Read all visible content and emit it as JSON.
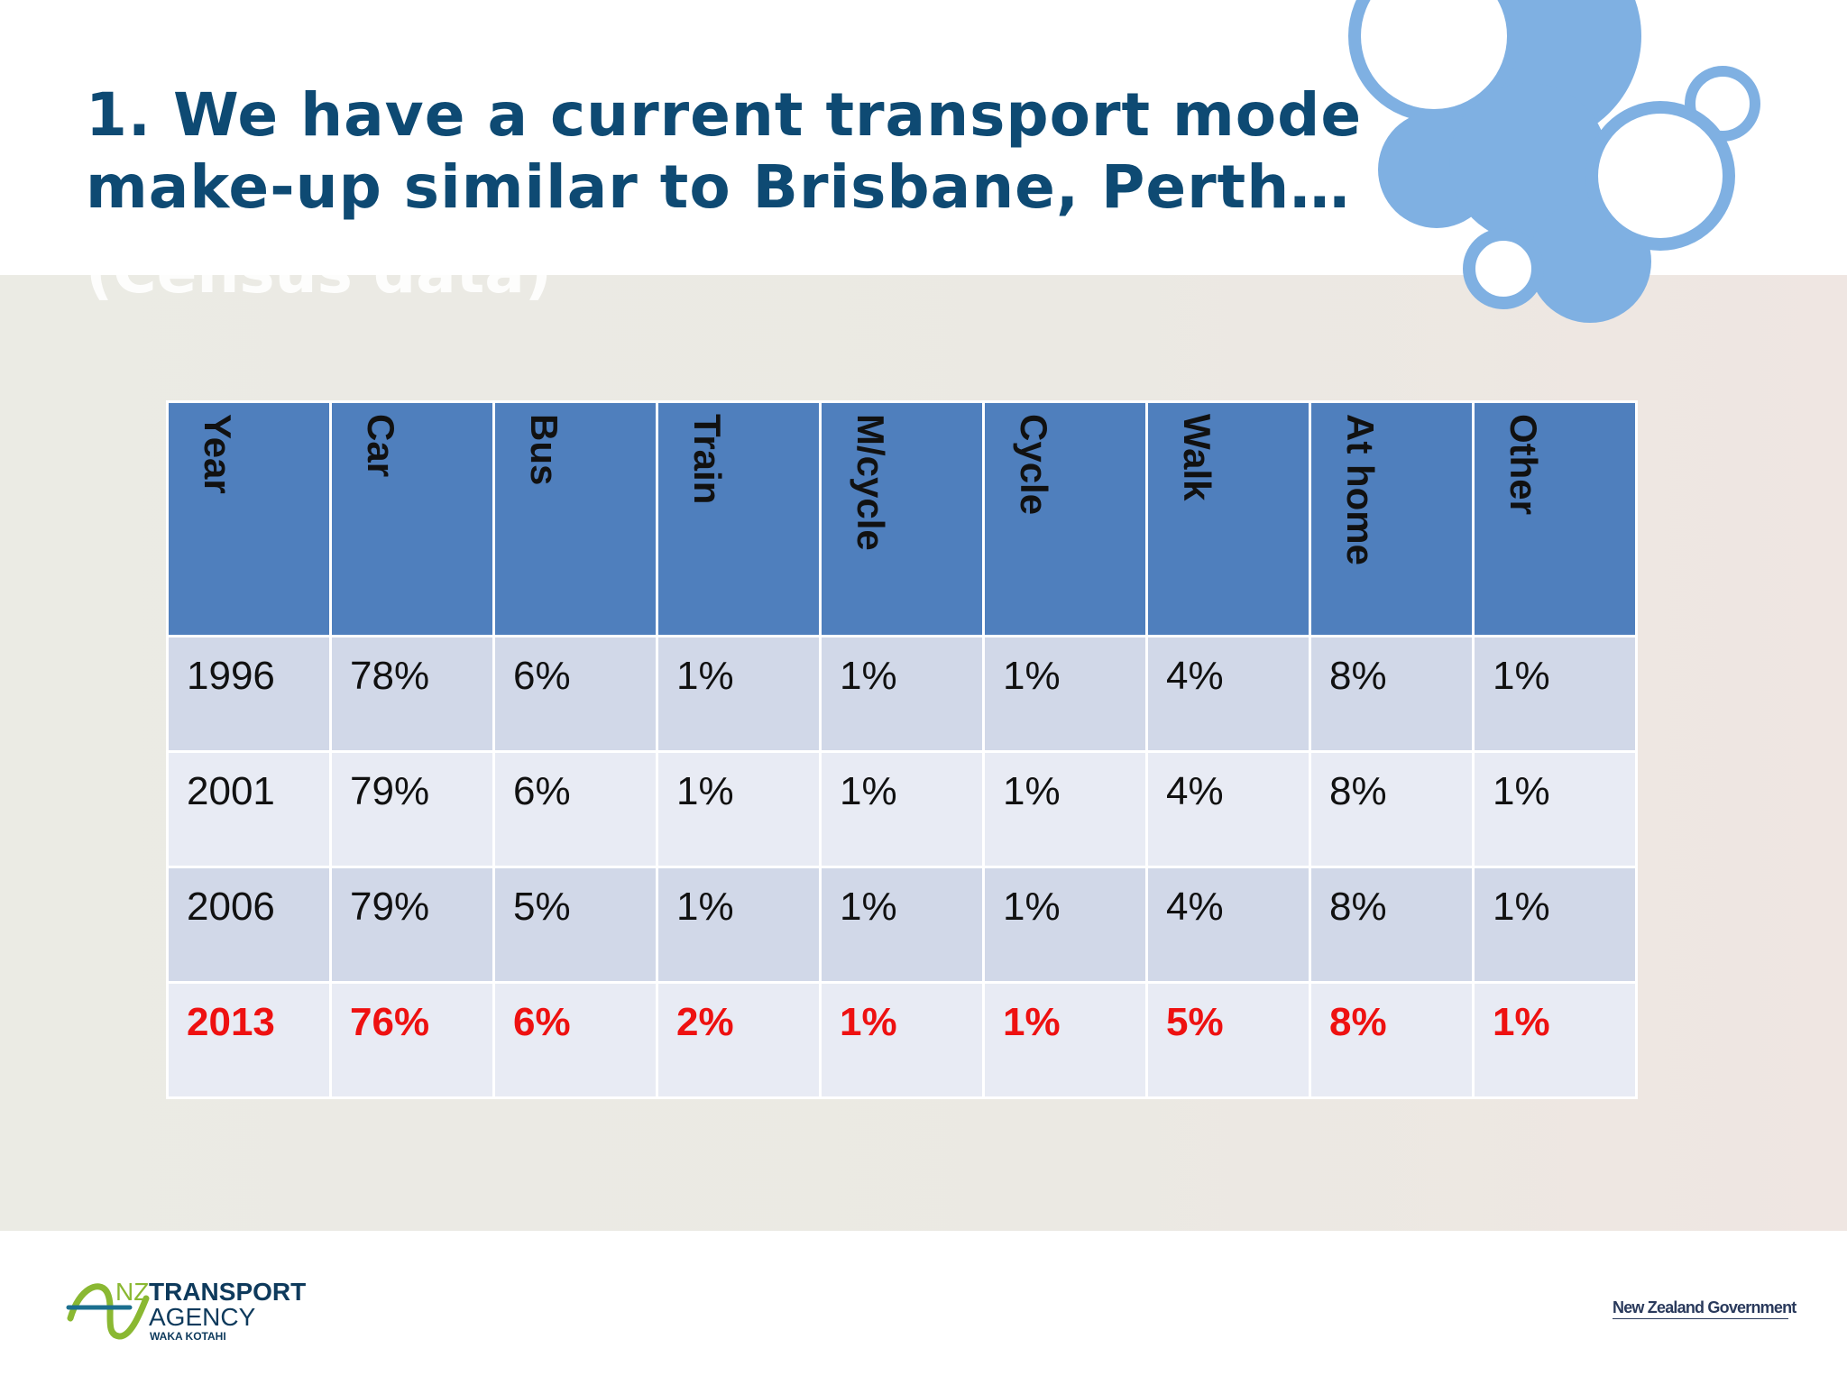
{
  "slide": {
    "title_line1": "1. We have a current transport mode",
    "title_line2": "make-up similar to Brisbane, Perth…",
    "subtitle_ghost": "(Census data)"
  },
  "table": {
    "headers": [
      "Year",
      "Car",
      "Bus",
      "Train",
      "M/cycle",
      "Cycle",
      "Walk",
      "At home",
      "Other"
    ],
    "rows": [
      [
        "1996",
        "78%",
        "6%",
        "1%",
        "1%",
        "1%",
        "4%",
        "8%",
        "1%"
      ],
      [
        "2001",
        "79%",
        "6%",
        "1%",
        "1%",
        "1%",
        "4%",
        "8%",
        "1%"
      ],
      [
        "2006",
        "79%",
        "5%",
        "1%",
        "1%",
        "1%",
        "4%",
        "8%",
        "1%"
      ],
      [
        "2013",
        "76%",
        "6%",
        "2%",
        "1%",
        "1%",
        "5%",
        "8%",
        "1%"
      ]
    ]
  },
  "footer": {
    "logo_nz": "NZ",
    "logo_transport": "TRANSPORT",
    "logo_agency": "AGENCY",
    "logo_maori": "WAKA KOTAHI",
    "government": "New Zealand Government"
  },
  "colors": {
    "title": "#0e4a73",
    "header_bg": "#4f7fbd",
    "highlight_text": "#ee1111",
    "bubble": "#7fb0e2"
  }
}
